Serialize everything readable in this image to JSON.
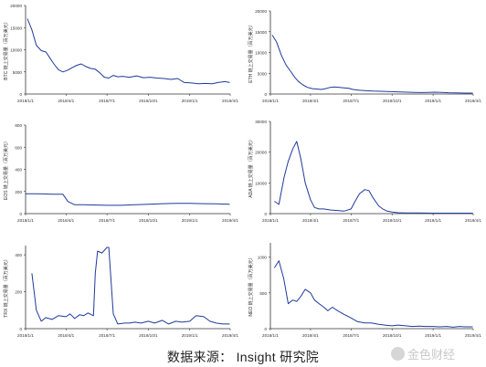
{
  "source_note": "数据来源： Insight  研究院",
  "watermark": "金色财经",
  "colors": {
    "line": "#1f3b9a",
    "axis": "#333333",
    "text": "#333333"
  },
  "chart_data": [
    {
      "type": "line",
      "ylabel": "BTC 链上交易量（百万美元）",
      "ylim": [
        0,
        20000
      ],
      "yticks": [
        0,
        5000,
        10000,
        15000,
        20000
      ],
      "xlim": [
        "2018/1/1",
        "2019/4/1"
      ],
      "xticks": [
        "2018/1/1",
        "2018/4/1",
        "2018/7/1",
        "2018/10/1",
        "2019/1/1",
        "2019/4/1"
      ],
      "x": [
        "2018/1/5",
        "2018/1/15",
        "2018/1/25",
        "2018/2/5",
        "2018/2/15",
        "2018/2/25",
        "2018/3/5",
        "2018/3/15",
        "2018/3/25",
        "2018/4/5",
        "2018/4/15",
        "2018/4/25",
        "2018/5/5",
        "2018/5/15",
        "2018/5/25",
        "2018/6/5",
        "2018/6/15",
        "2018/6/25",
        "2018/7/5",
        "2018/7/15",
        "2018/7/25",
        "2018/8/5",
        "2018/8/20",
        "2018/9/5",
        "2018/9/20",
        "2018/10/5",
        "2018/10/20",
        "2018/11/5",
        "2018/11/20",
        "2018/12/5",
        "2018/12/20",
        "2019/1/5",
        "2019/1/20",
        "2019/2/5",
        "2019/2/20",
        "2019/3/5",
        "2019/3/20",
        "2019/3/31"
      ],
      "y": [
        17000,
        14500,
        11000,
        9800,
        9500,
        8000,
        6800,
        5500,
        5000,
        5400,
        6000,
        6500,
        6800,
        6200,
        5800,
        5600,
        4800,
        3800,
        3600,
        4200,
        3900,
        4000,
        3800,
        4100,
        3700,
        3800,
        3600,
        3500,
        3300,
        3500,
        2600,
        2500,
        2300,
        2400,
        2300,
        2600,
        2800,
        2600
      ]
    },
    {
      "type": "line",
      "ylabel": "ETH 链上交易量（百万美元）",
      "ylim": [
        0,
        20000
      ],
      "yticks": [
        0,
        5000,
        10000,
        15000,
        20000
      ],
      "xlim": [
        "2018/1/1",
        "2019/4/1"
      ],
      "xticks": [
        "2018/1/1",
        "2018/4/1",
        "2018/7/1",
        "2018/10/1",
        "2019/1/1",
        "2019/4/1"
      ],
      "x": [
        "2018/1/5",
        "2018/1/15",
        "2018/1/25",
        "2018/2/5",
        "2018/2/15",
        "2018/2/25",
        "2018/3/5",
        "2018/3/15",
        "2018/3/25",
        "2018/4/5",
        "2018/4/15",
        "2018/4/25",
        "2018/5/5",
        "2018/5/15",
        "2018/5/25",
        "2018/6/5",
        "2018/6/15",
        "2018/6/25",
        "2018/7/5",
        "2018/7/20",
        "2018/8/5",
        "2018/8/20",
        "2018/9/5",
        "2018/9/20",
        "2018/10/5",
        "2018/10/20",
        "2018/11/5",
        "2018/11/20",
        "2018/12/5",
        "2018/12/20",
        "2019/1/5",
        "2019/1/20",
        "2019/2/5",
        "2019/2/20",
        "2019/3/5",
        "2019/3/20",
        "2019/3/31"
      ],
      "y": [
        14200,
        12500,
        9500,
        7000,
        5500,
        4000,
        3000,
        2200,
        1600,
        1300,
        1200,
        1100,
        1300,
        1600,
        1700,
        1600,
        1500,
        1400,
        1100,
        900,
        800,
        700,
        650,
        600,
        550,
        500,
        450,
        400,
        350,
        400,
        450,
        380,
        300,
        280,
        250,
        230,
        220
      ]
    },
    {
      "type": "line",
      "ylabel": "EOS 链上交易量（百万美元）",
      "ylim": [
        0,
        800
      ],
      "yticks": [
        0,
        200,
        400,
        600,
        800
      ],
      "xlim": [
        "2018/1/1",
        "2019/4/1"
      ],
      "xticks": [
        "2018/1/1",
        "2018/4/1",
        "2018/7/1",
        "2018/10/1",
        "2019/1/1",
        "2019/4/1"
      ],
      "x": [
        "2018/1/1",
        "2018/1/20",
        "2018/2/10",
        "2018/3/1",
        "2018/3/25",
        "2018/4/5",
        "2018/4/20",
        "2018/5/10",
        "2018/6/1",
        "2018/7/1",
        "2018/8/1",
        "2018/9/1",
        "2018/10/1",
        "2018/11/1",
        "2018/12/1",
        "2019/1/1",
        "2019/2/1",
        "2019/3/1",
        "2019/3/31"
      ],
      "y": [
        180,
        180,
        178,
        176,
        175,
        110,
        80,
        80,
        78,
        75,
        75,
        80,
        85,
        90,
        92,
        92,
        90,
        88,
        85
      ]
    },
    {
      "type": "line",
      "ylabel": "ADA 链上交易量（百万美元）",
      "ylim": [
        0,
        30000
      ],
      "yticks": [
        0,
        10000,
        20000,
        30000
      ],
      "xlim": [
        "2018/1/1",
        "2019/4/1"
      ],
      "xticks": [
        "2018/1/1",
        "2018/4/1",
        "2018/7/1",
        "2018/10/1",
        "2019/1/1",
        "2019/4/1"
      ],
      "x": [
        "2018/1/10",
        "2018/1/20",
        "2018/2/1",
        "2018/2/10",
        "2018/2/20",
        "2018/3/1",
        "2018/3/10",
        "2018/3/20",
        "2018/4/1",
        "2018/4/10",
        "2018/4/20",
        "2018/5/1",
        "2018/5/15",
        "2018/6/1",
        "2018/6/15",
        "2018/7/1",
        "2018/7/10",
        "2018/7/20",
        "2018/8/1",
        "2018/8/10",
        "2018/8/20",
        "2018/9/1",
        "2018/9/10",
        "2018/9/20",
        "2018/10/1",
        "2018/10/15",
        "2018/11/1",
        "2018/12/1",
        "2019/1/1",
        "2019/2/1",
        "2019/3/1",
        "2019/3/31"
      ],
      "y": [
        4000,
        3000,
        12000,
        17000,
        21000,
        23500,
        18000,
        10000,
        4500,
        2000,
        1500,
        1500,
        1200,
        1000,
        800,
        1500,
        4000,
        6500,
        7800,
        7500,
        5000,
        2500,
        1500,
        800,
        500,
        300,
        200,
        200,
        150,
        150,
        150,
        150
      ]
    },
    {
      "type": "line",
      "ylabel": "TRX 链上交易量（百万美元）",
      "ylim": [
        0,
        450
      ],
      "yticks": [
        0,
        200,
        400
      ],
      "xlim": [
        "2018/1/1",
        "2019/4/1"
      ],
      "xticks": [
        "2018/1/1",
        "2018/4/1",
        "2018/7/1",
        "2018/10/1",
        "2019/1/1",
        "2019/4/1"
      ],
      "x": [
        "2018/1/15",
        "2018/1/25",
        "2018/2/5",
        "2018/2/15",
        "2018/3/1",
        "2018/3/15",
        "2018/4/1",
        "2018/4/10",
        "2018/4/20",
        "2018/5/1",
        "2018/5/10",
        "2018/5/20",
        "2018/6/1",
        "2018/6/5",
        "2018/6/10",
        "2018/6/20",
        "2018/7/1",
        "2018/7/5",
        "2018/7/15",
        "2018/7/25",
        "2018/8/10",
        "2018/8/20",
        "2018/9/1",
        "2018/9/15",
        "2018/10/1",
        "2018/10/15",
        "2018/11/1",
        "2018/11/15",
        "2018/12/1",
        "2018/12/15",
        "2019/1/1",
        "2019/1/15",
        "2019/2/1",
        "2019/2/15",
        "2019/3/1",
        "2019/3/15",
        "2019/3/31"
      ],
      "y": [
        300,
        100,
        40,
        60,
        50,
        70,
        65,
        80,
        55,
        75,
        70,
        85,
        70,
        300,
        420,
        410,
        440,
        440,
        80,
        25,
        30,
        30,
        35,
        30,
        40,
        30,
        45,
        25,
        40,
        35,
        40,
        70,
        65,
        40,
        30,
        25,
        25
      ]
    },
    {
      "type": "line",
      "ylabel": "NEO 链上交易量（百万美元）",
      "ylim": [
        0,
        1200
      ],
      "yticks": [
        0,
        500,
        1000
      ],
      "xlim": [
        "2018/1/1",
        "2019/4/1"
      ],
      "xticks": [
        "2018/1/1",
        "2018/4/1",
        "2018/7/1",
        "2018/10/1",
        "2019/1/1",
        "2019/4/1"
      ],
      "x": [
        "2018/1/10",
        "2018/1/20",
        "2018/1/31",
        "2018/2/10",
        "2018/2/20",
        "2018/3/1",
        "2018/3/10",
        "2018/3/20",
        "2018/4/1",
        "2018/4/10",
        "2018/4/20",
        "2018/5/1",
        "2018/5/10",
        "2018/5/20",
        "2018/6/1",
        "2018/6/15",
        "2018/7/1",
        "2018/7/15",
        "2018/8/1",
        "2018/8/15",
        "2018/9/1",
        "2018/9/15",
        "2018/10/1",
        "2018/10/15",
        "2018/11/1",
        "2018/11/15",
        "2018/12/1",
        "2018/12/15",
        "2019/1/1",
        "2019/1/15",
        "2019/2/1",
        "2019/2/15",
        "2019/3/1",
        "2019/3/15",
        "2019/3/31"
      ],
      "y": [
        850,
        950,
        700,
        350,
        400,
        380,
        450,
        550,
        500,
        400,
        350,
        300,
        250,
        300,
        250,
        200,
        150,
        100,
        80,
        80,
        60,
        50,
        40,
        50,
        40,
        30,
        35,
        30,
        30,
        25,
        30,
        20,
        30,
        25,
        25
      ]
    }
  ]
}
